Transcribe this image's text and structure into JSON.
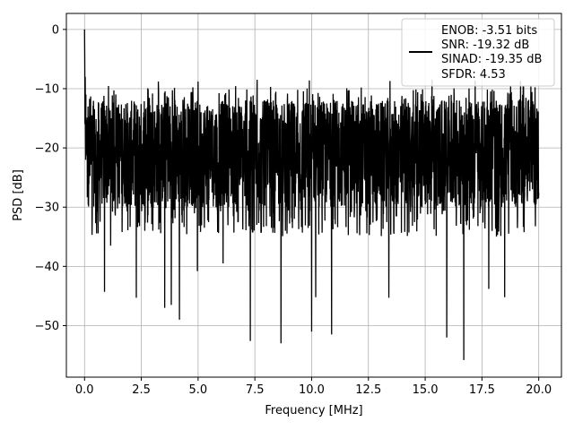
{
  "chart_data": {
    "type": "line",
    "title": "",
    "xlabel": "Frequency [MHz]",
    "ylabel": "PSD [dB]",
    "xlim": [
      -0.8,
      21.0
    ],
    "ylim": [
      -58.7,
      2.7
    ],
    "xticks": [
      0.0,
      2.5,
      5.0,
      7.5,
      10.0,
      12.5,
      15.0,
      17.5,
      20.0
    ],
    "xtick_labels": [
      "0.0",
      "2.5",
      "5.0",
      "7.5",
      "10.0",
      "12.5",
      "15.0",
      "17.5",
      "20.0"
    ],
    "yticks": [
      0,
      -10,
      -20,
      -30,
      -40,
      -50
    ],
    "ytick_labels": [
      "0",
      "−10",
      "−20",
      "−30",
      "−40",
      "−50"
    ],
    "grid": true,
    "legend_position": "top-right",
    "legend_lines": [
      "ENOB: -3.51 bits",
      "SNR: -19.32 dB",
      "SINAD: -19.35 dB",
      "SFDR: 4.53"
    ],
    "line_color": "#000000",
    "series": [
      {
        "x_start": 0.0,
        "x_end": 20.0,
        "peak": {
          "x": 0.0,
          "y": 0.0
        },
        "typical_upper_envelope": -12,
        "typical_lower_envelope": -30,
        "deep_nulls": [
          {
            "x": 0.88,
            "y": -44.3
          },
          {
            "x": 1.15,
            "y": -36.5
          },
          {
            "x": 2.28,
            "y": -45.3
          },
          {
            "x": 3.53,
            "y": -47.0
          },
          {
            "x": 3.82,
            "y": -46.5
          },
          {
            "x": 4.18,
            "y": -49.0
          },
          {
            "x": 4.97,
            "y": -40.8
          },
          {
            "x": 6.1,
            "y": -39.5
          },
          {
            "x": 7.3,
            "y": -52.6
          },
          {
            "x": 8.65,
            "y": -53.0
          },
          {
            "x": 10.0,
            "y": -51.0
          },
          {
            "x": 10.18,
            "y": -45.2
          },
          {
            "x": 10.88,
            "y": -51.5
          },
          {
            "x": 13.4,
            "y": -45.3
          },
          {
            "x": 15.95,
            "y": -52.0
          },
          {
            "x": 16.7,
            "y": -55.8
          },
          {
            "x": 17.8,
            "y": -43.8
          },
          {
            "x": 18.5,
            "y": -45.2
          }
        ],
        "peaks": [
          {
            "x": 3.25,
            "y": -8.8
          },
          {
            "x": 5.0,
            "y": -8.8
          },
          {
            "x": 7.6,
            "y": -8.5
          },
          {
            "x": 9.9,
            "y": -8.6
          },
          {
            "x": 13.45,
            "y": -8.7
          },
          {
            "x": 15.3,
            "y": -8.5
          },
          {
            "x": 17.2,
            "y": -8.6
          },
          {
            "x": 19.2,
            "y": -8.7
          }
        ]
      }
    ]
  }
}
